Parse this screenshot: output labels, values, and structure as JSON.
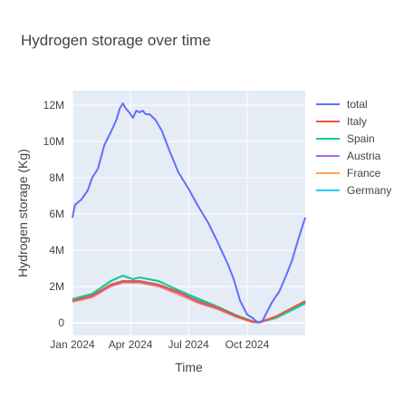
{
  "chart_data": {
    "type": "line",
    "title": "Hydrogen storage over time",
    "xlabel": "Time",
    "ylabel": "Hydrogen storage (Kg)",
    "x_ticks": [
      "Jan 2024",
      "Apr 2024",
      "Jul 2024",
      "Oct 2024"
    ],
    "y_ticks": [
      "0",
      "2M",
      "4M",
      "6M",
      "8M",
      "10M",
      "12M"
    ],
    "x_range": [
      "2024-01-01",
      "2024-12-31"
    ],
    "ylim": [
      -700000,
      12800000
    ],
    "grid": true,
    "legend_position": "right",
    "series": [
      {
        "name": "total",
        "color": "#636efa",
        "points": [
          [
            "2024-01-01",
            5.8
          ],
          [
            "2024-01-05",
            6.5
          ],
          [
            "2024-01-15",
            6.8
          ],
          [
            "2024-01-25",
            7.3
          ],
          [
            "2024-02-01",
            8.0
          ],
          [
            "2024-02-10",
            8.5
          ],
          [
            "2024-02-20",
            9.8
          ],
          [
            "2024-03-01",
            10.5
          ],
          [
            "2024-03-10",
            11.2
          ],
          [
            "2024-03-15",
            11.8
          ],
          [
            "2024-03-20",
            12.1
          ],
          [
            "2024-03-25",
            11.8
          ],
          [
            "2024-03-30",
            11.6
          ],
          [
            "2024-04-05",
            11.3
          ],
          [
            "2024-04-10",
            11.7
          ],
          [
            "2024-04-15",
            11.6
          ],
          [
            "2024-04-20",
            11.7
          ],
          [
            "2024-04-25",
            11.5
          ],
          [
            "2024-05-01",
            11.5
          ],
          [
            "2024-05-10",
            11.2
          ],
          [
            "2024-05-20",
            10.6
          ],
          [
            "2024-06-01",
            9.5
          ],
          [
            "2024-06-15",
            8.3
          ],
          [
            "2024-07-01",
            7.4
          ],
          [
            "2024-07-15",
            6.5
          ],
          [
            "2024-08-01",
            5.5
          ],
          [
            "2024-08-15",
            4.5
          ],
          [
            "2024-09-01",
            3.2
          ],
          [
            "2024-09-10",
            2.4
          ],
          [
            "2024-09-20",
            1.2
          ],
          [
            "2024-10-01",
            0.45
          ],
          [
            "2024-10-10",
            0.25
          ],
          [
            "2024-10-15",
            0.08
          ],
          [
            "2024-10-20",
            0.02
          ],
          [
            "2024-10-25",
            0.1
          ],
          [
            "2024-11-01",
            0.6
          ],
          [
            "2024-11-10",
            1.2
          ],
          [
            "2024-11-20",
            1.7
          ],
          [
            "2024-12-01",
            2.6
          ],
          [
            "2024-12-10",
            3.4
          ],
          [
            "2024-12-20",
            4.6
          ],
          [
            "2024-12-31",
            5.8
          ]
        ]
      },
      {
        "name": "Italy",
        "color": "#ef553b",
        "points": [
          [
            "2024-01-01",
            1.2
          ],
          [
            "2024-02-01",
            1.5
          ],
          [
            "2024-03-01",
            2.1
          ],
          [
            "2024-03-20",
            2.3
          ],
          [
            "2024-04-15",
            2.3
          ],
          [
            "2024-05-15",
            2.1
          ],
          [
            "2024-06-15",
            1.7
          ],
          [
            "2024-07-15",
            1.2
          ],
          [
            "2024-08-15",
            0.85
          ],
          [
            "2024-09-15",
            0.35
          ],
          [
            "2024-10-10",
            0.05
          ],
          [
            "2024-10-20",
            0.02
          ],
          [
            "2024-11-15",
            0.35
          ],
          [
            "2024-12-31",
            1.2
          ]
        ]
      },
      {
        "name": "Spain",
        "color": "#00cc96",
        "points": [
          [
            "2024-01-01",
            1.3
          ],
          [
            "2024-02-01",
            1.6
          ],
          [
            "2024-03-01",
            2.3
          ],
          [
            "2024-03-20",
            2.6
          ],
          [
            "2024-04-05",
            2.4
          ],
          [
            "2024-04-15",
            2.5
          ],
          [
            "2024-05-15",
            2.3
          ],
          [
            "2024-06-15",
            1.8
          ],
          [
            "2024-07-15",
            1.35
          ],
          [
            "2024-08-15",
            0.9
          ],
          [
            "2024-09-15",
            0.4
          ],
          [
            "2024-10-10",
            0.08
          ],
          [
            "2024-10-20",
            0.05
          ],
          [
            "2024-11-15",
            0.3
          ],
          [
            "2024-12-31",
            1.1
          ]
        ]
      },
      {
        "name": "Austria",
        "color": "#ab63fa",
        "points": [
          [
            "2024-01-01",
            1.2
          ],
          [
            "2024-02-01",
            1.45
          ],
          [
            "2024-03-01",
            2.05
          ],
          [
            "2024-03-20",
            2.25
          ],
          [
            "2024-04-15",
            2.25
          ],
          [
            "2024-05-15",
            2.05
          ],
          [
            "2024-06-15",
            1.65
          ],
          [
            "2024-07-15",
            1.15
          ],
          [
            "2024-08-15",
            0.8
          ],
          [
            "2024-09-15",
            0.33
          ],
          [
            "2024-10-10",
            0.04
          ],
          [
            "2024-10-20",
            0.02
          ],
          [
            "2024-11-15",
            0.3
          ],
          [
            "2024-12-31",
            1.15
          ]
        ]
      },
      {
        "name": "France",
        "color": "#ffa15a",
        "points": [
          [
            "2024-01-01",
            1.15
          ],
          [
            "2024-02-01",
            1.4
          ],
          [
            "2024-03-01",
            2.0
          ],
          [
            "2024-03-20",
            2.2
          ],
          [
            "2024-04-15",
            2.2
          ],
          [
            "2024-05-15",
            2.0
          ],
          [
            "2024-06-15",
            1.55
          ],
          [
            "2024-07-15",
            1.1
          ],
          [
            "2024-08-15",
            0.75
          ],
          [
            "2024-09-15",
            0.3
          ],
          [
            "2024-10-10",
            0.03
          ],
          [
            "2024-10-20",
            0.01
          ],
          [
            "2024-11-15",
            0.28
          ],
          [
            "2024-12-31",
            1.1
          ]
        ]
      },
      {
        "name": "Germany",
        "color": "#19d3f3",
        "points": [
          [
            "2024-01-01",
            1.25
          ],
          [
            "2024-02-01",
            1.45
          ],
          [
            "2024-03-01",
            2.1
          ],
          [
            "2024-03-20",
            2.3
          ],
          [
            "2024-04-15",
            2.3
          ],
          [
            "2024-05-15",
            2.1
          ],
          [
            "2024-06-15",
            1.7
          ],
          [
            "2024-07-15",
            1.25
          ],
          [
            "2024-08-15",
            0.85
          ],
          [
            "2024-09-15",
            0.35
          ],
          [
            "2024-10-10",
            0.05
          ],
          [
            "2024-10-20",
            0.03
          ],
          [
            "2024-11-15",
            0.25
          ],
          [
            "2024-12-31",
            1.05
          ]
        ]
      }
    ],
    "y_unit_scale": 1000000
  },
  "colors": {
    "plot_background": "#e5ecf6",
    "grid": "#ffffff",
    "text": "#444444"
  }
}
